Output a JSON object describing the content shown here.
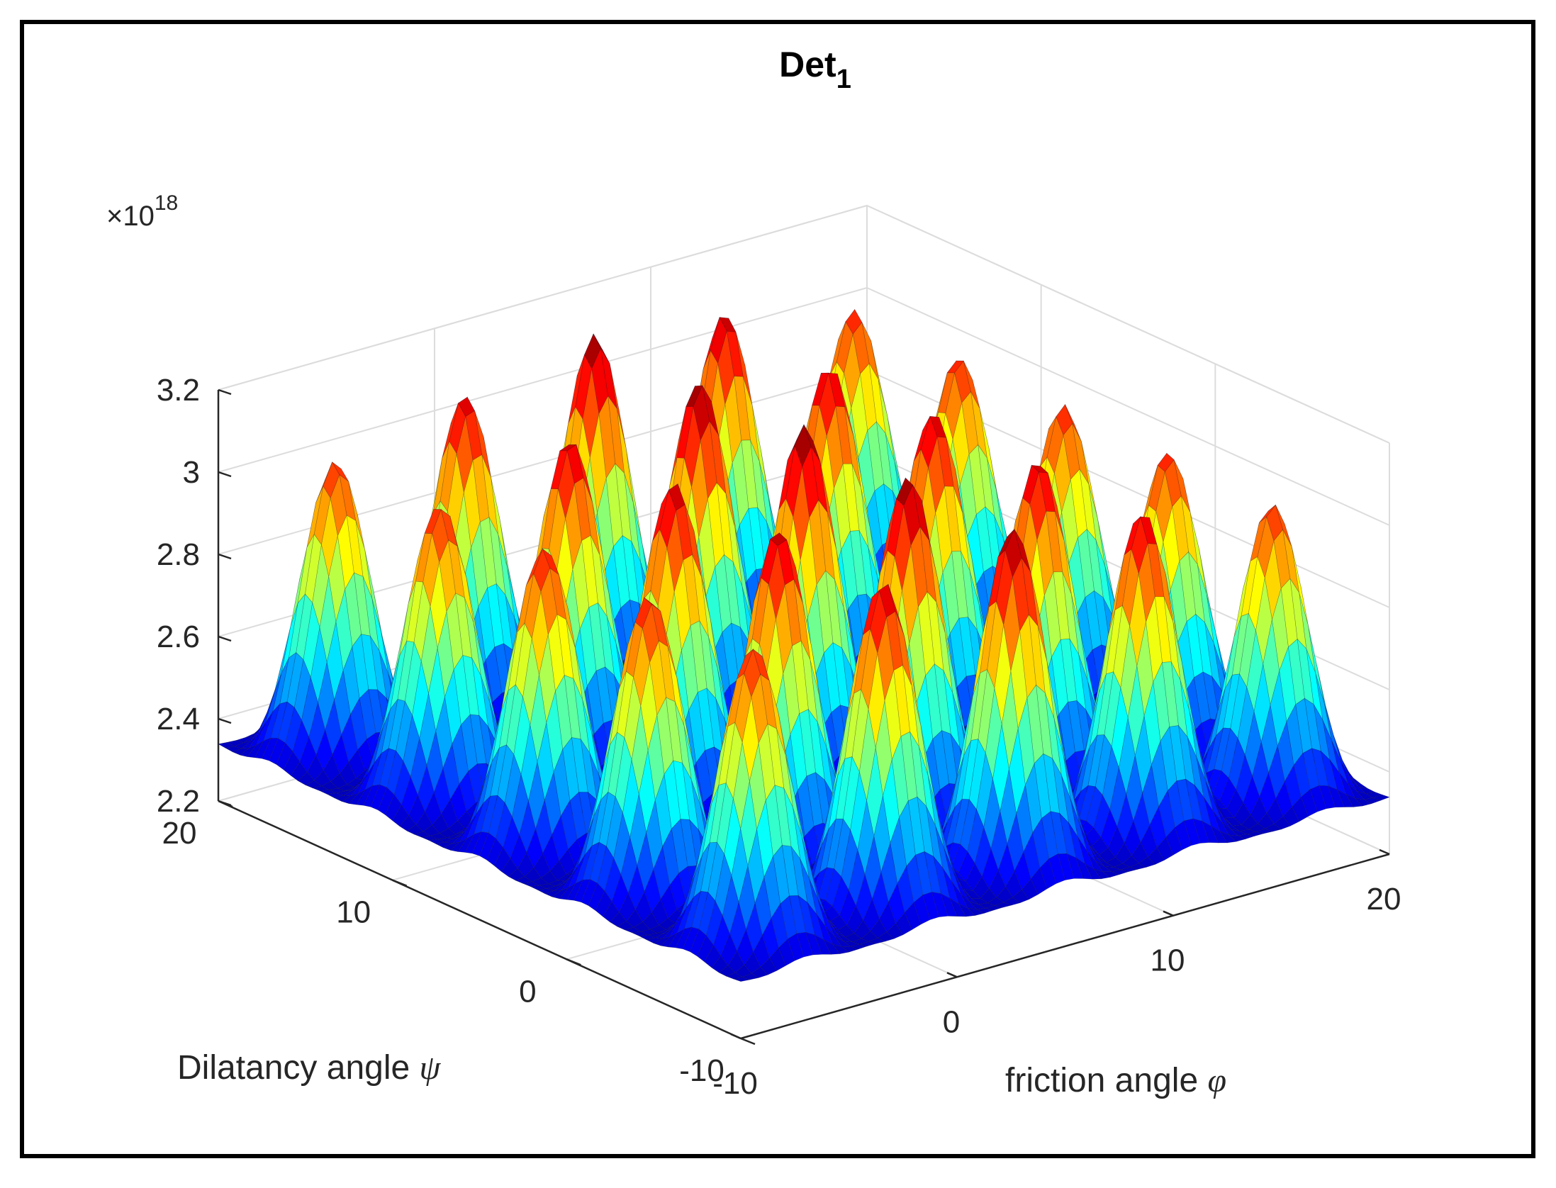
{
  "chart_data": {
    "type": "surface",
    "title": "Det",
    "title_subscript": "1",
    "xlabel": "friction angle",
    "xlabel_symbol": "φ",
    "ylabel": "Dilatancy angle",
    "ylabel_symbol": "ψ",
    "xlim": [
      -10,
      20
    ],
    "ylim": [
      -10,
      20
    ],
    "zlim": [
      2.2,
      3.2
    ],
    "z_exponent_label": "×10",
    "z_exponent_power": "18",
    "x_ticks": [
      "-10",
      "0",
      "10",
      "20"
    ],
    "y_ticks": [
      "-10",
      "0",
      "10",
      "20"
    ],
    "z_ticks": [
      "2.2",
      "2.4",
      "2.6",
      "2.8",
      "3",
      "3.2"
    ],
    "grid": true,
    "colormap": "jet",
    "colors": {
      "low": "#00008f",
      "mid": "#00ffff",
      "upper": "#ffff00",
      "high": "#800000"
    },
    "surface": {
      "baseline_z": 2.34,
      "peak_spacing": 6,
      "peak_width_sigma": 1.25,
      "peaks": [
        {
          "x": -7,
          "y": 17,
          "z": 3.04
        },
        {
          "x": -1,
          "y": 17,
          "z": 3.11
        },
        {
          "x": 5,
          "y": 17,
          "z": 3.17
        },
        {
          "x": 11,
          "y": 17,
          "z": 3.13
        },
        {
          "x": 17,
          "y": 17,
          "z": 3.05
        },
        {
          "x": -7,
          "y": 11,
          "z": 3.05
        },
        {
          "x": -1,
          "y": 11,
          "z": 3.12
        },
        {
          "x": 5,
          "y": 11,
          "z": 3.17
        },
        {
          "x": 11,
          "y": 11,
          "z": 3.12
        },
        {
          "x": 17,
          "y": 11,
          "z": 3.05
        },
        {
          "x": -7,
          "y": 5,
          "z": 3.06
        },
        {
          "x": -1,
          "y": 5,
          "z": 3.13
        },
        {
          "x": 5,
          "y": 5,
          "z": 3.18
        },
        {
          "x": 11,
          "y": 5,
          "z": 3.12
        },
        {
          "x": 17,
          "y": 5,
          "z": 3.05
        },
        {
          "x": -7,
          "y": -1,
          "z": 3.06
        },
        {
          "x": -1,
          "y": -1,
          "z": 3.13
        },
        {
          "x": 5,
          "y": -1,
          "z": 3.17
        },
        {
          "x": 11,
          "y": -1,
          "z": 3.12
        },
        {
          "x": 17,
          "y": -1,
          "z": 3.05
        },
        {
          "x": -7,
          "y": -7,
          "z": 3.05
        },
        {
          "x": -1,
          "y": -7,
          "z": 3.12
        },
        {
          "x": 5,
          "y": -7,
          "z": 3.16
        },
        {
          "x": 11,
          "y": -7,
          "z": 3.11
        },
        {
          "x": 17,
          "y": -7,
          "z": 3.04
        }
      ]
    }
  }
}
